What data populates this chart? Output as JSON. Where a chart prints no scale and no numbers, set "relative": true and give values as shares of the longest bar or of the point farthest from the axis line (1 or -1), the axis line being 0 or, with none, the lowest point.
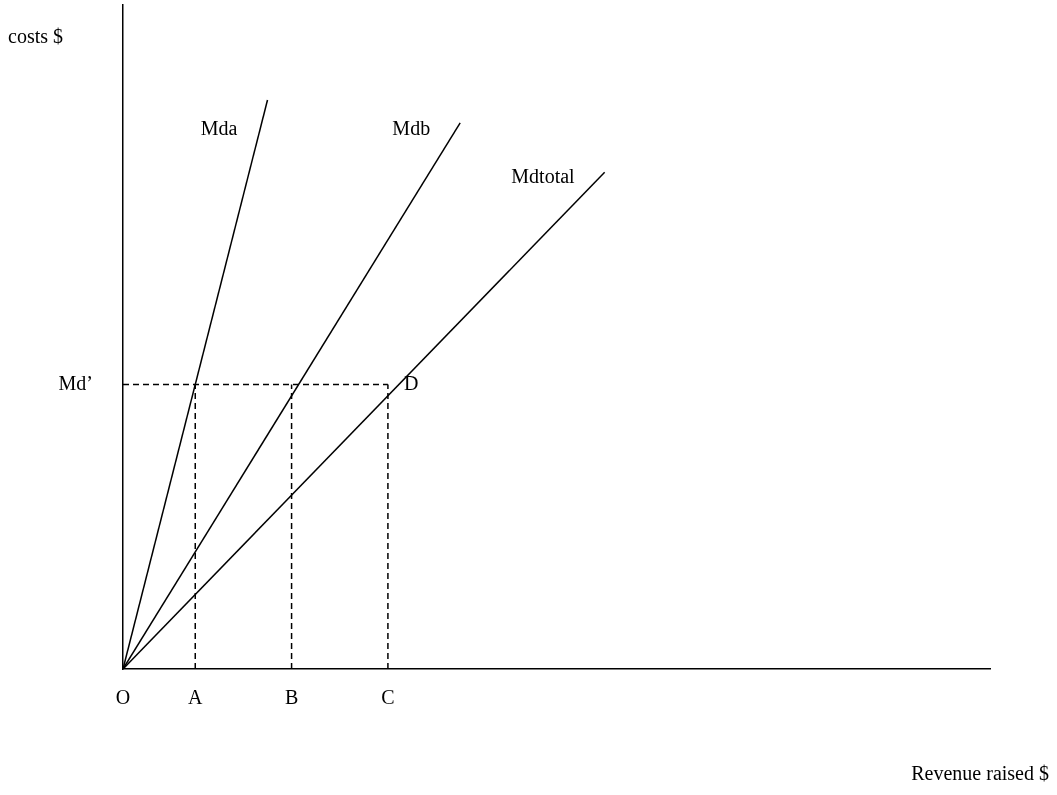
{
  "chart_data": {
    "type": "line",
    "relative": true,
    "xlabel": "Revenue raised $",
    "ylabel": "costs $",
    "categories": [
      "O",
      null,
      null,
      "A",
      null,
      null,
      null,
      "B",
      null,
      null,
      null,
      "C",
      null,
      null,
      null,
      null,
      null,
      null,
      null,
      null,
      null,
      null,
      null,
      null,
      null,
      null,
      null,
      null,
      null,
      null,
      null,
      null,
      null,
      null,
      null,
      null,
      null
    ],
    "series": [
      {
        "name": "Mda",
        "color": "#000000",
        "values": [
          0,
          null,
          null,
          null,
          null,
          null,
          1,
          null,
          null,
          null,
          null,
          null,
          null,
          null,
          null,
          null,
          null,
          null,
          null,
          null,
          null,
          null,
          null,
          null,
          null,
          null,
          null,
          null,
          null,
          null,
          null,
          null,
          null,
          null,
          null,
          null,
          null
        ]
      },
      {
        "name": "Mdb",
        "color": "#000000",
        "values": [
          0,
          null,
          null,
          null,
          null,
          null,
          null,
          null,
          null,
          null,
          null,
          null,
          null,
          null,
          0.96,
          null,
          null,
          null,
          null,
          null,
          null,
          null,
          null,
          null,
          null,
          null,
          null,
          null,
          null,
          null,
          null,
          null,
          null,
          null,
          null,
          null,
          null
        ]
      },
      {
        "name": "Mdtotal",
        "color": "#000000",
        "values": [
          0,
          null,
          null,
          null,
          null,
          null,
          null,
          null,
          null,
          null,
          null,
          null,
          null,
          null,
          null,
          null,
          null,
          null,
          null,
          null,
          0.873,
          null,
          null,
          null,
          null,
          null,
          null,
          null,
          null,
          null,
          null,
          null,
          null,
          null,
          null,
          null,
          null
        ]
      }
    ],
    "ref_lines": [
      {
        "axis": "y",
        "value": 0.5,
        "label": "Md’",
        "line_style": "dashed"
      },
      {
        "axis": "x",
        "value": "A",
        "line_style": "dashed"
      },
      {
        "axis": "x",
        "value": "B",
        "line_style": "dashed"
      },
      {
        "axis": "x",
        "value": "C",
        "line_style": "dashed"
      }
    ],
    "annotations": [
      {
        "text": "D",
        "x": "C",
        "y": 0.5
      }
    ],
    "legend": false,
    "grid": false,
    "marker": "none",
    "line_style": "solid"
  }
}
